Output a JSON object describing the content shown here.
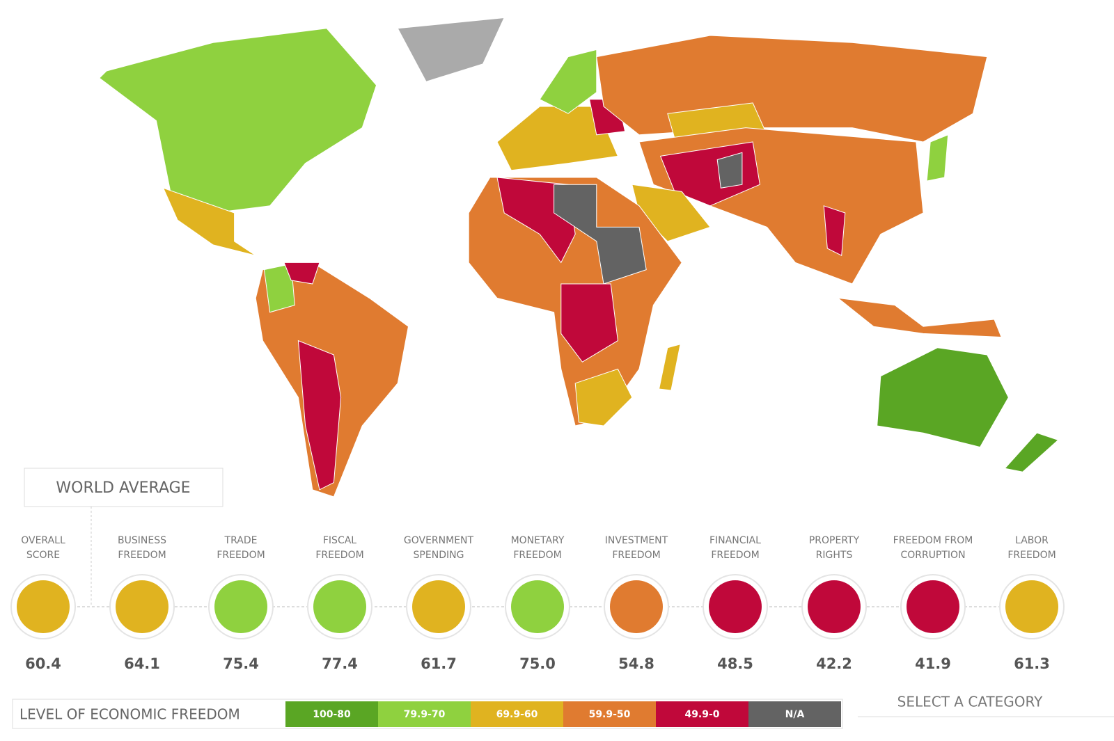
{
  "world_average_label": "WORLD AVERAGE",
  "categories": [
    {
      "lines": [
        "OVERALL",
        "SCORE"
      ],
      "score": "60.4",
      "color": "#e0b320"
    },
    {
      "lines": [
        "BUSINESS",
        "FREEDOM"
      ],
      "score": "64.1",
      "color": "#e0b320"
    },
    {
      "lines": [
        "TRADE",
        "FREEDOM"
      ],
      "score": "75.4",
      "color": "#8fd13f"
    },
    {
      "lines": [
        "FISCAL",
        "FREEDOM"
      ],
      "score": "77.4",
      "color": "#8fd13f"
    },
    {
      "lines": [
        "GOVERNMENT",
        "SPENDING"
      ],
      "score": "61.7",
      "color": "#e0b320"
    },
    {
      "lines": [
        "MONETARY",
        "FREEDOM"
      ],
      "score": "75.0",
      "color": "#8fd13f"
    },
    {
      "lines": [
        "INVESTMENT",
        "FREEDOM"
      ],
      "score": "54.8",
      "color": "#e07b30"
    },
    {
      "lines": [
        "FINANCIAL",
        "FREEDOM"
      ],
      "score": "48.5",
      "color": "#c0083a"
    },
    {
      "lines": [
        "PROPERTY",
        "RIGHTS"
      ],
      "score": "42.2",
      "color": "#c0083a"
    },
    {
      "lines": [
        "FREEDOM FROM",
        "CORRUPTION"
      ],
      "score": "41.9",
      "color": "#c0083a"
    },
    {
      "lines": [
        "LABOR",
        "FREEDOM"
      ],
      "score": "61.3",
      "color": "#e0b320"
    }
  ],
  "legend": {
    "title": "LEVEL OF ECONOMIC FREEDOM",
    "items": [
      {
        "label": "100-80",
        "color": "#5aa624"
      },
      {
        "label": "79.9-70",
        "color": "#8fd13f"
      },
      {
        "label": "69.9-60",
        "color": "#e0b320"
      },
      {
        "label": "59.9-50",
        "color": "#e07b30"
      },
      {
        "label": "49.9-0",
        "color": "#c0083a"
      },
      {
        "label": "N/A",
        "color": "#636363"
      }
    ]
  },
  "select_label": "SELECT A CATEGORY"
}
